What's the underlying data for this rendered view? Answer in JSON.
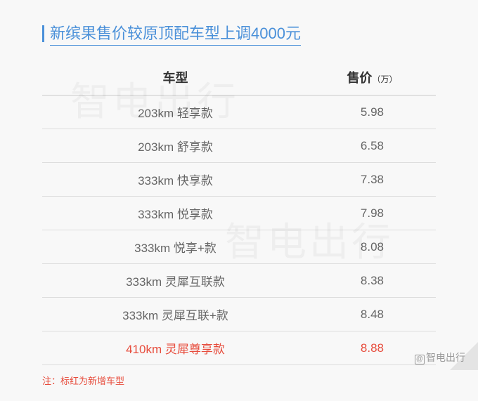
{
  "title": "新缤果售价较原顶配车型上调4000元",
  "columns": {
    "model": "车型",
    "price": "售价",
    "price_unit": "（万）"
  },
  "rows": [
    {
      "model": "203km 轻享款",
      "price": "5.98",
      "highlight": false
    },
    {
      "model": "203km 舒享款",
      "price": "6.58",
      "highlight": false
    },
    {
      "model": "333km 快享款",
      "price": "7.38",
      "highlight": false
    },
    {
      "model": "333km 悦享款",
      "price": "7.98",
      "highlight": false
    },
    {
      "model": "333km 悦享+款",
      "price": "8.08",
      "highlight": false
    },
    {
      "model": "333km 灵犀互联款",
      "price": "8.38",
      "highlight": false
    },
    {
      "model": "333km 灵犀互联+款",
      "price": "8.48",
      "highlight": false
    },
    {
      "model": "410km 灵犀尊享款",
      "price": "8.88",
      "highlight": true
    }
  ],
  "note": "注：标红为新增车型",
  "watermark": "智电出行",
  "credit": "智电出行",
  "colors": {
    "accent": "#4a90d9",
    "highlight": "#e74c3c",
    "text": "#666",
    "header": "#333",
    "bg": "#f8f8f8"
  }
}
